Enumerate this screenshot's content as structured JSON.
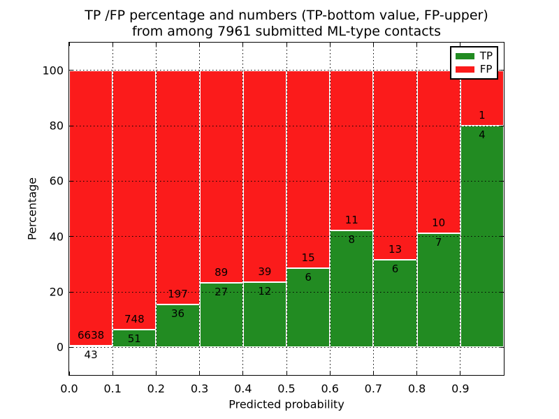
{
  "chart": {
    "title_line1": "TP /FP percentage and numbers (TP-bottom value, FP-upper)",
    "title_line2": "from among 7961 submitted ML-type contacts",
    "xlabel": "Predicted probability",
    "ylabel": "Percentage"
  },
  "legend": {
    "position": "upper right",
    "entries": [
      {
        "label": "TP",
        "color": "#228b22"
      },
      {
        "label": "FP",
        "color": "#fb1b1b"
      }
    ]
  },
  "chart_data": {
    "type": "bar",
    "subtype": "stacked-100-percent",
    "title": "TP /FP percentage and numbers (TP-bottom value, FP-upper)\nfrom among 7961 submitted ML-type contacts",
    "xlabel": "Predicted probability",
    "ylabel": "Percentage",
    "total_contacts": 7961,
    "bins": [
      0.0,
      0.1,
      0.2,
      0.3,
      0.4,
      0.5,
      0.6,
      0.7,
      0.8,
      0.9
    ],
    "bin_width": 0.1,
    "series": [
      {
        "name": "TP",
        "color": "#228b22",
        "counts": [
          43,
          51,
          36,
          27,
          12,
          6,
          8,
          6,
          7,
          4
        ],
        "percent": [
          0.64,
          6.38,
          15.45,
          23.28,
          23.53,
          28.57,
          42.11,
          31.58,
          41.18,
          80.0
        ]
      },
      {
        "name": "FP",
        "color": "#fb1b1b",
        "counts": [
          6638,
          748,
          197,
          89,
          39,
          15,
          11,
          13,
          10,
          1
        ],
        "percent": [
          99.36,
          93.62,
          84.55,
          76.72,
          76.47,
          71.43,
          57.89,
          68.42,
          58.82,
          20.0
        ]
      }
    ],
    "bar_edge_color": "#ffffff",
    "xlim": [
      0.0,
      1.0
    ],
    "ylim": [
      -10,
      110
    ],
    "xticks": {
      "values": [
        0.0,
        0.1,
        0.2,
        0.3,
        0.4,
        0.5,
        0.6,
        0.7,
        0.8,
        0.9
      ],
      "labels": [
        "0.0",
        "0.1",
        "0.2",
        "0.3",
        "0.4",
        "0.5",
        "0.6",
        "0.7",
        "0.8",
        "0.9"
      ]
    },
    "yticks": {
      "values": [
        0,
        20,
        40,
        60,
        80,
        100
      ],
      "labels": [
        "0",
        "20",
        "40",
        "60",
        "80",
        "100"
      ]
    },
    "grid": {
      "on": true,
      "style": "dotted",
      "color": "#000000",
      "axes": "both"
    },
    "legend": {
      "position": "upper right",
      "entries": [
        "TP",
        "FP"
      ]
    }
  }
}
